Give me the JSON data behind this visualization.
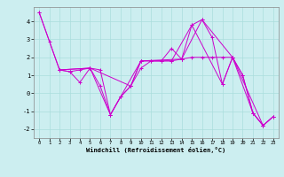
{
  "xlabel": "Windchill (Refroidissement éolien,°C)",
  "ylabel": "",
  "background_color": "#cceef0",
  "grid_color": "#aadddd",
  "line_color": "#cc00cc",
  "xlim": [
    -0.5,
    23.5
  ],
  "ylim": [
    -2.5,
    4.8
  ],
  "xticks": [
    0,
    1,
    2,
    3,
    4,
    5,
    6,
    7,
    8,
    9,
    10,
    11,
    12,
    13,
    14,
    15,
    16,
    17,
    18,
    19,
    20,
    21,
    22,
    23
  ],
  "yticks": [
    -2,
    -1,
    0,
    1,
    2,
    3,
    4
  ],
  "series1": [
    [
      0,
      4.5
    ],
    [
      1,
      2.9
    ],
    [
      2,
      1.3
    ],
    [
      3,
      1.2
    ],
    [
      4,
      0.6
    ],
    [
      5,
      1.4
    ],
    [
      6,
      0.4
    ],
    [
      7,
      -1.2
    ],
    [
      8,
      -0.2
    ],
    [
      9,
      0.4
    ],
    [
      10,
      1.8
    ],
    [
      11,
      1.8
    ],
    [
      12,
      1.8
    ],
    [
      13,
      2.5
    ],
    [
      14,
      1.9
    ],
    [
      15,
      3.8
    ],
    [
      16,
      4.1
    ],
    [
      17,
      3.1
    ],
    [
      18,
      0.5
    ],
    [
      19,
      2.0
    ],
    [
      20,
      1.0
    ],
    [
      21,
      -1.1
    ],
    [
      22,
      -1.8
    ],
    [
      23,
      -1.3
    ]
  ],
  "series2": [
    [
      2,
      1.3
    ],
    [
      3,
      1.2
    ],
    [
      4,
      1.3
    ],
    [
      5,
      1.4
    ],
    [
      6,
      1.3
    ],
    [
      7,
      -1.2
    ],
    [
      8,
      -0.2
    ],
    [
      9,
      0.4
    ],
    [
      10,
      1.4
    ],
    [
      11,
      1.8
    ],
    [
      12,
      1.8
    ],
    [
      13,
      1.8
    ],
    [
      14,
      1.9
    ],
    [
      15,
      2.0
    ],
    [
      16,
      2.0
    ],
    [
      17,
      2.0
    ],
    [
      18,
      2.0
    ],
    [
      19,
      2.0
    ],
    [
      20,
      1.0
    ],
    [
      21,
      -1.1
    ],
    [
      22,
      -1.8
    ],
    [
      23,
      -1.3
    ]
  ],
  "series3": [
    [
      2,
      1.3
    ],
    [
      5,
      1.4
    ],
    [
      9,
      0.4
    ],
    [
      10,
      1.8
    ],
    [
      13,
      1.8
    ],
    [
      15,
      3.8
    ],
    [
      18,
      0.5
    ],
    [
      19,
      2.0
    ],
    [
      22,
      -1.8
    ],
    [
      23,
      -1.3
    ]
  ],
  "series4": [
    [
      0,
      4.5
    ],
    [
      2,
      1.3
    ],
    [
      5,
      1.4
    ],
    [
      7,
      -1.2
    ],
    [
      10,
      1.8
    ],
    [
      14,
      1.9
    ],
    [
      16,
      4.1
    ],
    [
      19,
      2.0
    ],
    [
      21,
      -1.1
    ],
    [
      22,
      -1.8
    ]
  ]
}
